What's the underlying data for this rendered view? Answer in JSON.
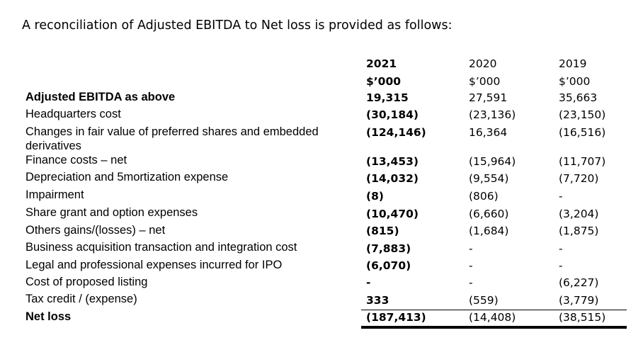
{
  "heading": "A reconciliation of Adjusted EBITDA to Net loss is provided as follows:",
  "columns": [
    {
      "year": "2021",
      "unit": "$’000"
    },
    {
      "year": "2020",
      "unit": "$’000"
    },
    {
      "year": "2019",
      "unit": "$’000"
    }
  ],
  "rows": [
    {
      "label": "Adjusted EBITDA as above",
      "values": [
        "19,315",
        "27,591",
        "35,663"
      ]
    },
    {
      "label": "Headquarters cost",
      "values": [
        "(30,184)",
        "(23,136)",
        "(23,150)"
      ]
    },
    {
      "label": "Changes in fair value of preferred shares and embedded derivatives",
      "values": [
        "(124,146)",
        "16,364",
        "(16,516)"
      ]
    },
    {
      "label": "Finance costs – net",
      "values": [
        "(13,453)",
        "(15,964)",
        "(11,707)"
      ]
    },
    {
      "label": "Depreciation and 5mortization expense",
      "values": [
        "(14,032)",
        "(9,554)",
        "(7,720)"
      ]
    },
    {
      "label": "Impairment",
      "values": [
        "(8)",
        "(806)",
        "-"
      ]
    },
    {
      "label": "Share grant and option expenses",
      "values": [
        "(10,470)",
        "(6,660)",
        "(3,204)"
      ]
    },
    {
      "label": "Others gains/(losses) – net",
      "values": [
        "(815)",
        "(1,684)",
        "(1,875)"
      ]
    },
    {
      "label": "Business acquisition transaction and integration cost",
      "values": [
        "(7,883)",
        "-",
        "-"
      ]
    },
    {
      "label": "Legal and professional expenses incurred for IPO",
      "values": [
        "(6,070)",
        "-",
        "-"
      ]
    },
    {
      "label": "Cost of proposed listing",
      "values": [
        "-",
        "-",
        "(6,227)"
      ]
    },
    {
      "label": "Tax credit / (expense)",
      "values": [
        "333",
        "(559)",
        "(3,779)"
      ]
    },
    {
      "label": "Net loss",
      "values": [
        "(187,413)",
        "(14,408)",
        "(38,515)"
      ]
    }
  ]
}
